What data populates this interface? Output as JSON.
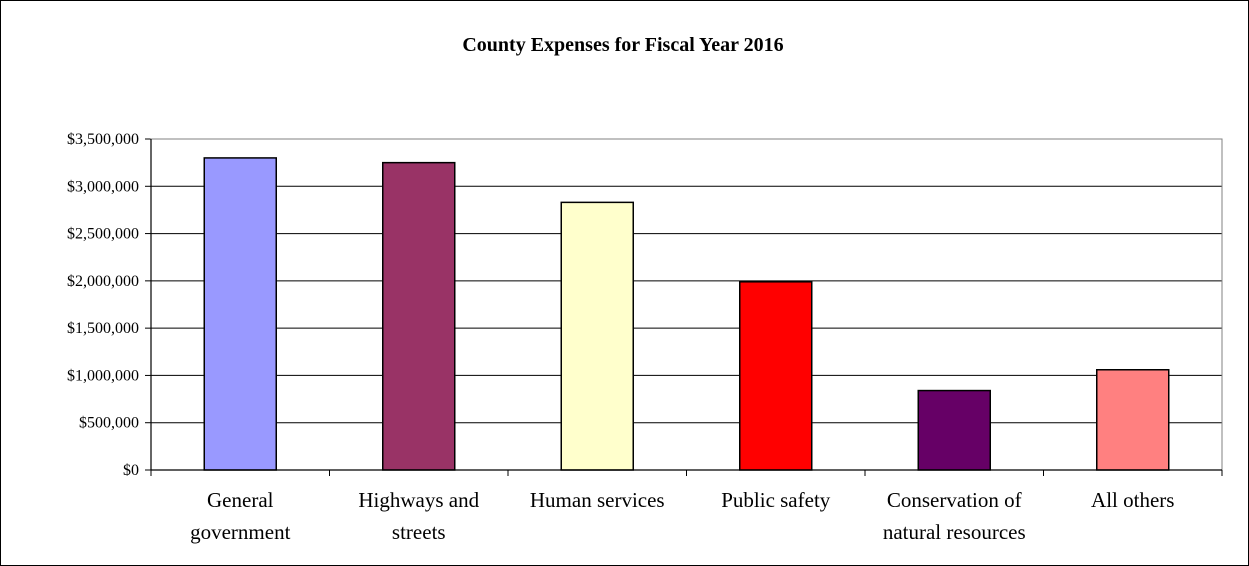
{
  "chart_data": {
    "type": "bar",
    "title": "County Expenses for Fiscal Year 2016",
    "xlabel": "",
    "ylabel": "",
    "categories": [
      [
        "General",
        "government"
      ],
      [
        "Highways and",
        "streets"
      ],
      [
        "Human services"
      ],
      [
        "Public safety"
      ],
      [
        "Conservation of",
        "natural resources"
      ],
      [
        "All others"
      ]
    ],
    "values": [
      3300000,
      3250000,
      2830000,
      1990000,
      840000,
      1060000
    ],
    "colors": [
      "#9999FF",
      "#993366",
      "#FFFFCC",
      "#FF0000",
      "#660066",
      "#FF8080"
    ],
    "ylim": [
      0,
      3500000
    ],
    "yticks": [
      0,
      500000,
      1000000,
      1500000,
      2000000,
      2500000,
      3000000,
      3500000
    ],
    "ytick_labels": [
      "$0",
      "$500,000",
      "$1,000,000",
      "$1,500,000",
      "$2,000,000",
      "$2,500,000",
      "$3,000,000",
      "$3,500,000"
    ],
    "grid": true,
    "legend": "none"
  }
}
